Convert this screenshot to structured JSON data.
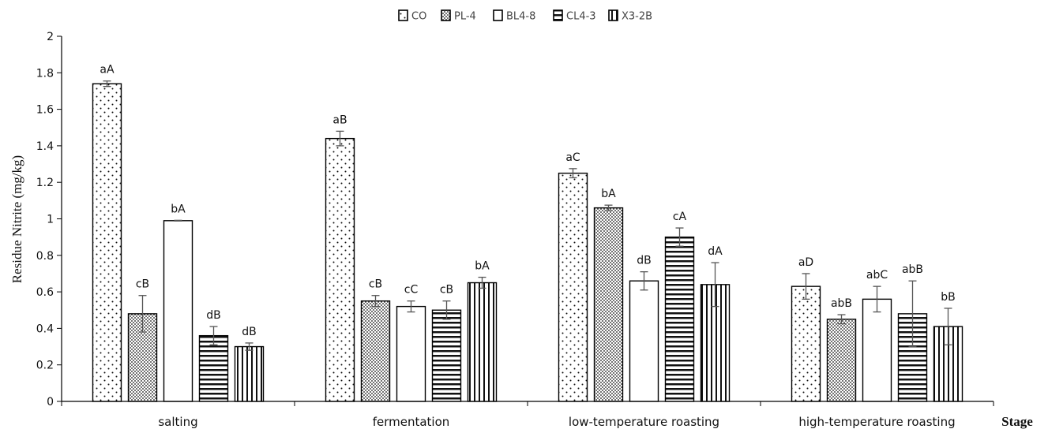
{
  "chart_data": {
    "type": "bar",
    "title": "",
    "xlabel": "Stage",
    "ylabel": "Residue Nitrite (mg/kg)",
    "ylim": [
      0,
      2
    ],
    "yticks": [
      "0",
      "0.2",
      "0.4",
      "0.6",
      "0.8",
      "1",
      "1.2",
      "1.4",
      "1.6",
      "1.8",
      "2"
    ],
    "grid": false,
    "legend_position": "top-center",
    "categories": [
      "salting",
      "fermentation",
      "low-temperature roasting",
      "high-temperature roasting"
    ],
    "series": [
      {
        "name": "CO",
        "pattern": "sparse-dots",
        "values": [
          1.74,
          1.44,
          1.25,
          0.63
        ],
        "errors": [
          0.015,
          0.04,
          0.025,
          0.07
        ],
        "labels": [
          "aA",
          "aB",
          "aC",
          "aD"
        ]
      },
      {
        "name": "PL-4",
        "pattern": "dense-dots",
        "values": [
          0.48,
          0.55,
          1.06,
          0.45
        ],
        "errors": [
          0.1,
          0.03,
          0.015,
          0.025
        ],
        "labels": [
          "cB",
          "cB",
          "bA",
          "abB"
        ]
      },
      {
        "name": "BL4-8",
        "pattern": "none",
        "values": [
          0.99,
          0.52,
          0.66,
          0.56
        ],
        "errors": [
          0.002,
          0.03,
          0.05,
          0.07
        ],
        "labels": [
          "bA",
          "cC",
          "dB",
          "abC"
        ]
      },
      {
        "name": "CL4-3",
        "pattern": "horizontal-lines",
        "values": [
          0.36,
          0.5,
          0.9,
          0.48
        ],
        "errors": [
          0.05,
          0.05,
          0.05,
          0.18
        ],
        "labels": [
          "dB",
          "cB",
          "cA",
          "abB"
        ]
      },
      {
        "name": "X3-2B",
        "pattern": "vertical-lines",
        "values": [
          0.3,
          0.65,
          0.64,
          0.41
        ],
        "errors": [
          0.02,
          0.03,
          0.12,
          0.1
        ],
        "labels": [
          "dB",
          "bA",
          "dA",
          "bB"
        ]
      }
    ],
    "colors": {
      "bar_fill": "#ffffff",
      "bar_stroke": "#000000",
      "error_bar": "#555555",
      "axis": "#000000"
    }
  }
}
